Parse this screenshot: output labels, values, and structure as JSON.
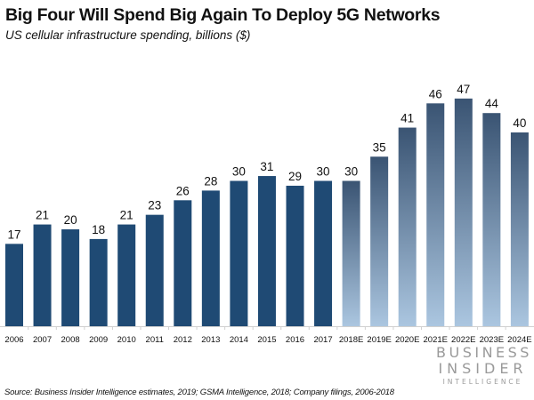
{
  "chart_data": {
    "type": "bar",
    "title": "Big Four Will Spend Big Again To Deploy 5G Networks",
    "subtitle": "US cellular infrastructure spending, billions ($)",
    "xlabel": "",
    "ylabel": "",
    "ylim": [
      0,
      50
    ],
    "grid": false,
    "categories": [
      "2006",
      "2007",
      "2008",
      "2009",
      "2010",
      "2011",
      "2012",
      "2013",
      "2014",
      "2015",
      "2016",
      "2017",
      "2018E",
      "2019E",
      "2020E",
      "2021E",
      "2022E",
      "2023E",
      "2024E"
    ],
    "values": [
      17,
      21,
      20,
      18,
      21,
      23,
      26,
      28,
      30,
      31,
      29,
      30,
      30,
      35,
      41,
      46,
      47,
      44,
      40
    ],
    "estimate": [
      false,
      false,
      false,
      false,
      false,
      false,
      false,
      false,
      false,
      false,
      false,
      false,
      true,
      true,
      true,
      true,
      true,
      true,
      true
    ],
    "colors": {
      "actual": "#1f4a74",
      "estimate_top": "#3a5473",
      "estimate_bottom": "#abc6e0",
      "axis": "#d0d0d0"
    },
    "source": "Source: Business Insider Intelligence estimates, 2019; GSMA Intelligence, 2018; Company filings, 2006-2018"
  },
  "branding": {
    "line1": "BUSINESS",
    "line2": "INSIDER",
    "line3": "INTELLIGENCE"
  }
}
